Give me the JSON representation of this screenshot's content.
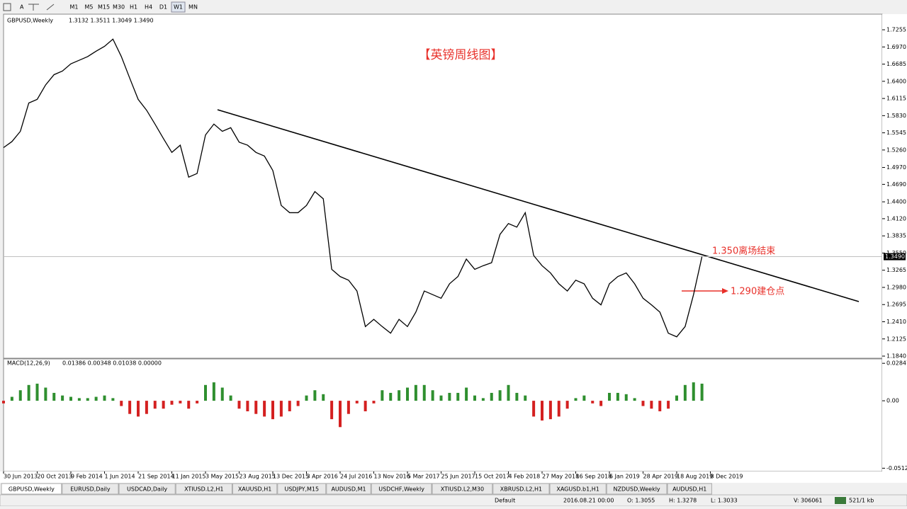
{
  "toolbar": {
    "timeframes": [
      "M1",
      "M5",
      "M15",
      "M30",
      "H1",
      "H4",
      "D1",
      "W1",
      "MN"
    ]
  },
  "chart_data": [
    {
      "type": "line",
      "title": "GBPUSD,Weekly",
      "info": "1.3132 1.3511 1.3049 1.3490",
      "color": "#000000",
      "categories": [
        "30 Jun 2013",
        null,
        null,
        null,
        "20 Oct 2013",
        null,
        null,
        null,
        "9 Feb 2014",
        null,
        null,
        null,
        "1 Jun 2014",
        null,
        null,
        null,
        "21 Sep 2014",
        null,
        null,
        null,
        "11 Jan 2015",
        null,
        null,
        null,
        "3 May 2015",
        null,
        null,
        null,
        "23 Aug 2015",
        null,
        null,
        null,
        "13 Dec 2015",
        null,
        null,
        null,
        "3 Apr 2016",
        null,
        null,
        null,
        "24 Jul 2016",
        null,
        null,
        null,
        "13 Nov 2016",
        null,
        null,
        null,
        "5 Mar 2017",
        null,
        null,
        null,
        "25 Jun 2017",
        null,
        null,
        null,
        "15 Oct 2017",
        null,
        null,
        null,
        "4 Feb 2018",
        null,
        null,
        null,
        "27 May 2018",
        null,
        null,
        null,
        "16 Sep 2018",
        null,
        null,
        null,
        "6 Jan 2019",
        null,
        null,
        null,
        "28 Apr 2019",
        null,
        null,
        null,
        "18 Aug 2019",
        null,
        null,
        null,
        "8 Dec 2019"
      ],
      "values": [
        1.53,
        1.54,
        1.557,
        1.604,
        1.61,
        1.634,
        1.651,
        1.657,
        1.669,
        1.675,
        1.681,
        1.69,
        1.698,
        1.71,
        1.681,
        1.645,
        1.61,
        1.592,
        1.569,
        1.545,
        1.522,
        1.534,
        1.481,
        1.487,
        1.551,
        1.569,
        1.557,
        1.563,
        1.539,
        1.534,
        1.522,
        1.516,
        1.492,
        1.434,
        1.422,
        1.422,
        1.434,
        1.457,
        1.445,
        1.328,
        1.316,
        1.31,
        1.292,
        1.233,
        1.245,
        1.233,
        1.222,
        1.245,
        1.233,
        1.257,
        1.292,
        1.286,
        1.28,
        1.304,
        1.316,
        1.345,
        1.328,
        1.334,
        1.339,
        1.386,
        1.404,
        1.398,
        1.422,
        1.351,
        1.334,
        1.322,
        1.304,
        1.292,
        1.31,
        1.304,
        1.28,
        1.269,
        1.304,
        1.316,
        1.322,
        1.304,
        1.28,
        1.269,
        1.257,
        1.222,
        1.216,
        1.233,
        1.286,
        1.349,
        null
      ],
      "ylim": [
        1.1805,
        1.7514
      ],
      "yticks": [
        {
          "value": 1.7255,
          "label": "1.7255"
        },
        {
          "value": 1.697,
          "label": "1.6970"
        },
        {
          "value": 1.6685,
          "label": "1.6685"
        },
        {
          "value": 1.64,
          "label": "1.6400"
        },
        {
          "value": 1.6115,
          "label": "1.6115"
        },
        {
          "value": 1.583,
          "label": "1.5830"
        },
        {
          "value": 1.5545,
          "label": "1.5545"
        },
        {
          "value": 1.526,
          "label": "1.5260"
        },
        {
          "value": 1.497,
          "label": "1.4970"
        },
        {
          "value": 1.469,
          "label": "1.4690"
        },
        {
          "value": 1.44,
          "label": "1.4400"
        },
        {
          "value": 1.412,
          "label": "1.4120"
        },
        {
          "value": 1.3835,
          "label": "1.3835"
        },
        {
          "value": 1.355,
          "label": "1.3550"
        },
        {
          "value": 1.3265,
          "label": "1.3265"
        },
        {
          "value": 1.298,
          "label": "1.2980"
        },
        {
          "value": 1.2695,
          "label": "1.2695"
        },
        {
          "value": 1.241,
          "label": "1.2410"
        },
        {
          "value": 1.2125,
          "label": "1.2125"
        },
        {
          "value": 1.184,
          "label": "1.1840"
        }
      ],
      "current_price": {
        "value": 1.349,
        "label": "1.3490"
      },
      "annotations": [
        "【英镑周线图】",
        "1.350离场结束",
        "1.290建仓点"
      ]
    },
    {
      "type": "bar",
      "title": "MACD(12,26,9)",
      "info": "0.01386 0.00348 0.01038 0.00000",
      "color_up": "#2f8f2f",
      "color_down": "#d42020",
      "values": [
        -0.002,
        0.003,
        0.008,
        0.012,
        0.013,
        0.01,
        0.006,
        0.004,
        0.003,
        0.002,
        0.002,
        0.003,
        0.004,
        0.002,
        -0.004,
        -0.01,
        -0.012,
        -0.01,
        -0.006,
        -0.006,
        -0.003,
        -0.002,
        -0.006,
        -0.002,
        0.012,
        0.014,
        0.01,
        0.004,
        -0.006,
        -0.008,
        -0.01,
        -0.012,
        -0.014,
        -0.012,
        -0.008,
        -0.004,
        0.004,
        0.008,
        0.005,
        -0.014,
        -0.02,
        -0.01,
        -0.002,
        -0.008,
        -0.002,
        0.008,
        0.006,
        0.008,
        0.01,
        0.012,
        0.012,
        0.008,
        0.004,
        0.006,
        0.006,
        0.01,
        0.004,
        0.002,
        0.006,
        0.008,
        0.012,
        0.006,
        0.004,
        -0.012,
        -0.015,
        -0.014,
        -0.012,
        -0.006,
        0.002,
        0.004,
        -0.002,
        -0.004,
        0.006,
        0.006,
        0.005,
        0.002,
        -0.004,
        -0.006,
        -0.008,
        -0.006,
        0.004,
        0.012,
        0.014,
        0.013,
        null
      ],
      "ylim": [
        -0.0532,
        0.0318
      ],
      "yticks": [
        0.02847,
        {
          "value": 0,
          "label": "0.00"
        },
        -0.05125
      ]
    }
  ],
  "tabs": [
    "GBPUSD,Weekly",
    "EURUSD,Daily",
    "USDCAD,Daily",
    "XTIUSD.L2,H1",
    "XAUUSD,H1",
    "USDJPY,M15",
    "AUDUSD,M1",
    "USDCHF,Weekly",
    "XTIUSD.L2,M30",
    "XBRUSD.L2,H1",
    "XAGUSD.b1,H1",
    "NZDUSD,Weekly",
    "AUDUSD,H1"
  ],
  "status_bar": {
    "profile": "Default",
    "time": "2016.08.21 00:00",
    "open": "O: 1.3055",
    "high": "H: 1.3278",
    "low": "L: 1.3033",
    "volume": "V: 306061",
    "traffic": "521/1 kb"
  }
}
